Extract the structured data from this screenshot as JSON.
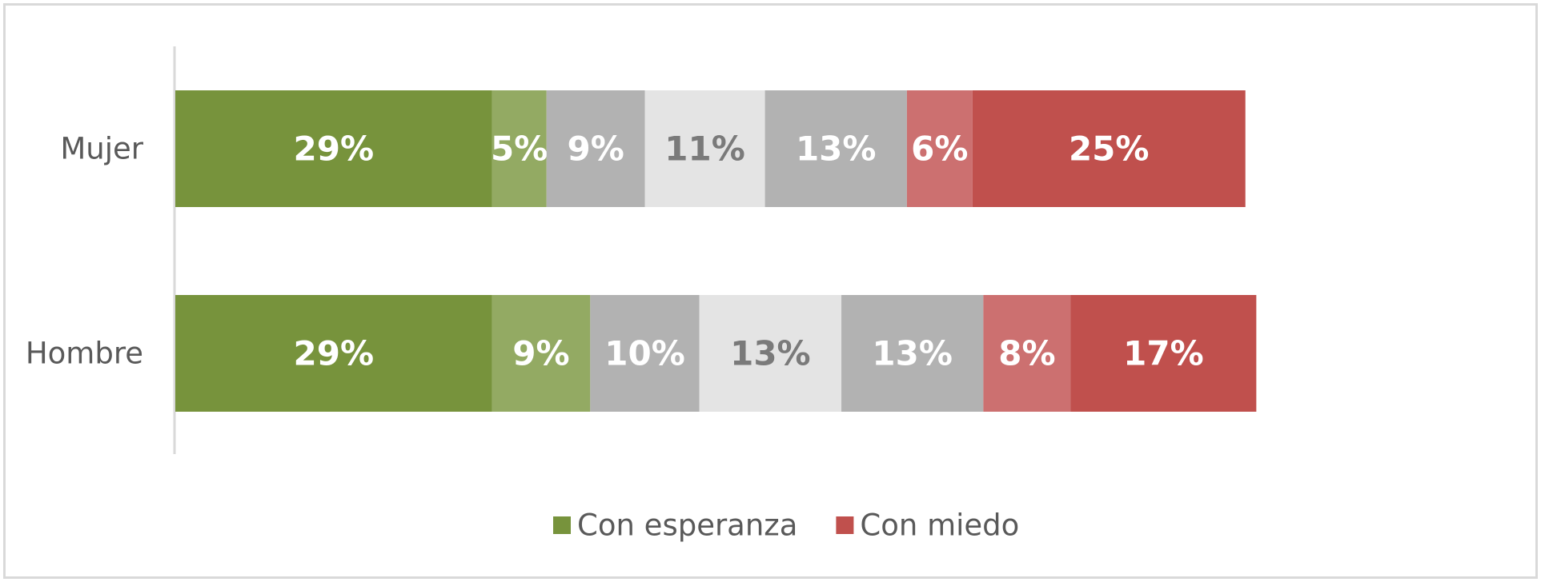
{
  "chart_data": {
    "type": "bar",
    "orientation": "horizontal",
    "stacked": true,
    "categories": [
      "Mujer",
      "Hombre"
    ],
    "segments": [
      {
        "values": [
          29,
          29
        ],
        "color": "#77933c",
        "label_color": "#ffffff"
      },
      {
        "values": [
          5,
          9
        ],
        "color": "#93aa63",
        "label_color": "#ffffff"
      },
      {
        "values": [
          9,
          10
        ],
        "color": "#b2b2b2",
        "label_color": "#ffffff"
      },
      {
        "values": [
          11,
          13
        ],
        "color": "#e4e4e4",
        "label_color": "#7a7a7a"
      },
      {
        "values": [
          13,
          13
        ],
        "color": "#b2b2b2",
        "label_color": "#ffffff"
      },
      {
        "values": [
          6,
          8
        ],
        "color": "#cc7070",
        "label_color": "#ffffff"
      },
      {
        "values": [
          25,
          17
        ],
        "color": "#c0504d",
        "label_color": "#ffffff"
      }
    ],
    "value_suffix": "%",
    "legend": {
      "position": "bottom",
      "entries": [
        {
          "name": "Con esperanza",
          "color": "#77933c"
        },
        {
          "name": "Con miedo",
          "color": "#c0504d"
        }
      ]
    },
    "title": "",
    "xlabel": "",
    "ylabel": "",
    "grid": false
  }
}
